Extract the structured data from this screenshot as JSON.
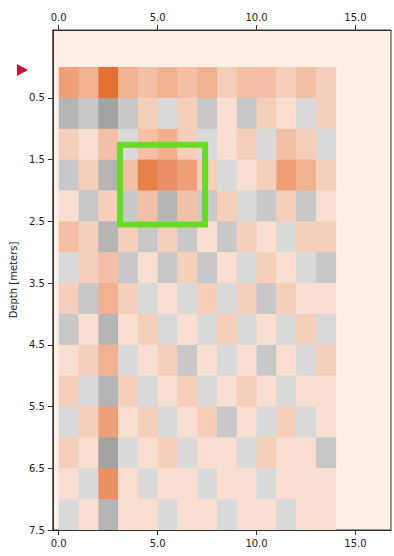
{
  "chart_data": {
    "type": "heatmap",
    "ylabel": "Depth [meters]",
    "xlim": [
      -0.3,
      16.8
    ],
    "xticks": [
      {
        "value": 0,
        "label": "0.0"
      },
      {
        "value": 5,
        "label": "5.0"
      },
      {
        "value": 10,
        "label": "10.0"
      },
      {
        "value": 15,
        "label": "15.0"
      }
    ],
    "ylim": [
      -0.6,
      7.5
    ],
    "yticks": [
      0.5,
      1.5,
      2.5,
      3.5,
      4.5,
      5.5,
      6.5,
      7.5
    ],
    "value_range": [
      -1,
      1
    ],
    "cells": {
      "x": [
        0.5,
        1.5,
        2.5,
        3.5,
        4.5,
        5.5,
        6.5,
        7.5,
        8.5,
        9.5,
        10.5,
        11.5,
        12.5,
        13.5
      ],
      "y": [
        0.25,
        0.75,
        1.25,
        1.75,
        2.25,
        2.75,
        3.25,
        3.75,
        4.25,
        4.75,
        5.25,
        5.75,
        6.25,
        6.75,
        7.25
      ],
      "values": [
        [
          0.6,
          0.5,
          0.9,
          0.5,
          0.4,
          0.5,
          0.4,
          0.5,
          0.3,
          0.4,
          0.4,
          0.3,
          0.4,
          0.3
        ],
        [
          -0.4,
          -0.3,
          -0.5,
          -0.3,
          0.3,
          -0.2,
          0.3,
          -0.3,
          0.2,
          -0.3,
          0.3,
          0.2,
          -0.2,
          0.3
        ],
        [
          0.3,
          0.2,
          0.4,
          -0.2,
          0.4,
          0.5,
          0.3,
          -0.2,
          0.2,
          0.3,
          -0.2,
          0.4,
          0.3,
          -0.2
        ],
        [
          -0.3,
          0.3,
          -0.4,
          0.4,
          0.8,
          0.7,
          0.6,
          0.3,
          -0.2,
          0.2,
          0.3,
          0.6,
          0.5,
          0.3
        ],
        [
          0.2,
          -0.3,
          0.3,
          -0.3,
          0.4,
          -0.4,
          0.4,
          -0.3,
          0.3,
          -0.2,
          -0.3,
          0.3,
          -0.3,
          0.2
        ],
        [
          0.4,
          0.3,
          -0.4,
          0.3,
          -0.3,
          0.3,
          -0.3,
          0.2,
          -0.3,
          0.3,
          0.2,
          -0.2,
          0.3,
          0.3
        ],
        [
          -0.2,
          0.3,
          0.4,
          -0.3,
          0.2,
          -0.3,
          0.3,
          -0.3,
          0.2,
          -0.2,
          0.3,
          0.2,
          -0.2,
          -0.3
        ],
        [
          0.3,
          -0.3,
          0.5,
          0.3,
          -0.2,
          0.2,
          -0.2,
          0.3,
          -0.2,
          0.3,
          -0.3,
          0.3,
          0.2,
          0.2
        ],
        [
          -0.3,
          0.2,
          -0.4,
          0.2,
          0.3,
          -0.2,
          0.2,
          -0.2,
          0.3,
          -0.2,
          0.2,
          -0.2,
          0.3,
          -0.2
        ],
        [
          0.2,
          0.3,
          0.5,
          -0.2,
          0.2,
          0.3,
          -0.3,
          0.2,
          -0.2,
          0.2,
          -0.3,
          0.2,
          -0.2,
          0.3
        ],
        [
          0.3,
          -0.2,
          -0.4,
          0.3,
          -0.2,
          0.2,
          0.3,
          -0.2,
          0.2,
          0.3,
          0.2,
          -0.2,
          0.2,
          0.2
        ],
        [
          -0.2,
          0.3,
          0.6,
          0.2,
          0.3,
          -0.2,
          0.2,
          0.3,
          -0.3,
          0.2,
          -0.2,
          0.3,
          -0.2,
          0.2
        ],
        [
          0.3,
          0.2,
          -0.5,
          -0.2,
          0.2,
          0.3,
          -0.2,
          0.2,
          0.2,
          -0.2,
          0.3,
          0.2,
          0.2,
          -0.3
        ],
        [
          0.2,
          -0.2,
          0.7,
          0.2,
          -0.2,
          0.2,
          0.2,
          -0.2,
          0.2,
          0.2,
          -0.2,
          0.2,
          0.2,
          0.2
        ],
        [
          -0.2,
          0.2,
          -0.4,
          0.2,
          0.2,
          -0.2,
          0.2,
          0.2,
          -0.2,
          0.2,
          0.2,
          -0.2,
          0.2,
          0.2
        ]
      ]
    },
    "annotations": [
      {
        "type": "rect",
        "x": [
          3.1,
          7.4
        ],
        "y": [
          1.26,
          2.55
        ],
        "color": "#66dd22"
      },
      {
        "type": "triangle",
        "y": 0.05,
        "color": "#cc1133"
      }
    ]
  }
}
